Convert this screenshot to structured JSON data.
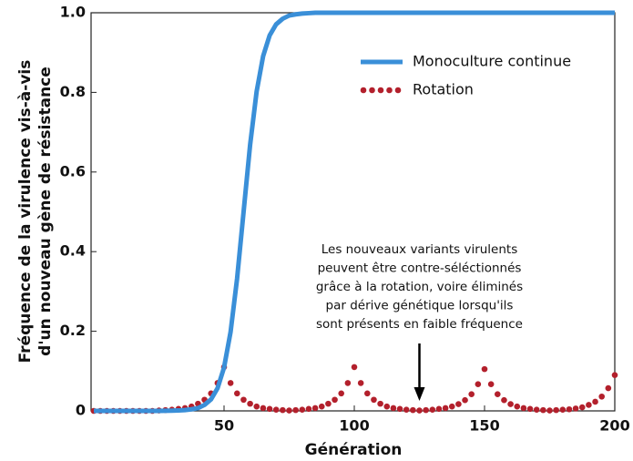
{
  "chart_data": {
    "type": "line",
    "xlabel": "Génération",
    "ylabel": [
      "Fréquence de la virulence vis-à-vis",
      "d'un nouveau gène de résistance"
    ],
    "annotation": [
      "Les nouveaux variants virulents",
      "peuvent être contre-séléctionnés",
      "grâce à la rotation, voire éliminés",
      "par dérive génétique lorsqu'ils",
      "sont présents en faible fréquence"
    ],
    "annotation_x": 125,
    "x": [
      0,
      2.5,
      5,
      7.5,
      10,
      12.5,
      15,
      17.5,
      20,
      22.5,
      25,
      27.5,
      30,
      32.5,
      35,
      37.5,
      40,
      42.5,
      45,
      47.5,
      50,
      52.5,
      55,
      57.5,
      60,
      62.5,
      65,
      67.5,
      70,
      72.5,
      75,
      77.5,
      80,
      82.5,
      85,
      87.5,
      90,
      92.5,
      95,
      97.5,
      100,
      102.5,
      105,
      107.5,
      110,
      112.5,
      115,
      117.5,
      120,
      122.5,
      125,
      127.5,
      130,
      132.5,
      135,
      137.5,
      140,
      142.5,
      145,
      147.5,
      150,
      152.5,
      155,
      157.5,
      160,
      162.5,
      165,
      167.5,
      170,
      172.5,
      175,
      177.5,
      180,
      182.5,
      185,
      187.5,
      190,
      192.5,
      195,
      197.5,
      200
    ],
    "series": [
      {
        "name": "Monoculture continue",
        "color": "#3a8fd8",
        "linestyle": "solid",
        "values": [
          0,
          0,
          0,
          0,
          0,
          0,
          0,
          0,
          0,
          0,
          0,
          0.0002,
          0.0005,
          0.001,
          0.002,
          0.004,
          0.007,
          0.015,
          0.029,
          0.057,
          0.109,
          0.198,
          0.332,
          0.5,
          0.668,
          0.802,
          0.891,
          0.943,
          0.971,
          0.985,
          0.993,
          0.996,
          0.998,
          0.999,
          1,
          1,
          1,
          1,
          1,
          1,
          1,
          1,
          1,
          1,
          1,
          1,
          1,
          1,
          1,
          1,
          1,
          1,
          1,
          1,
          1,
          1,
          1,
          1,
          1,
          1,
          1,
          1,
          1,
          1,
          1,
          1,
          1,
          1,
          1,
          1,
          1,
          1,
          1,
          1,
          1,
          1,
          1,
          1,
          1,
          1,
          1
        ]
      },
      {
        "name": "Rotation",
        "color": "#b3202c",
        "linestyle": "dotted",
        "values": [
          0,
          0,
          0,
          0,
          0,
          0,
          0,
          0,
          0,
          0,
          0.001,
          0.002,
          0.003,
          0.005,
          0.007,
          0.011,
          0.018,
          0.028,
          0.044,
          0.07,
          0.11,
          0.07,
          0.044,
          0.028,
          0.018,
          0.011,
          0.007,
          0.005,
          0.003,
          0.002,
          0.001,
          0.002,
          0.003,
          0.005,
          0.007,
          0.011,
          0.018,
          0.028,
          0.044,
          0.07,
          0.11,
          0.07,
          0.044,
          0.028,
          0.018,
          0.011,
          0.007,
          0.005,
          0.003,
          0.002,
          0.001,
          0.002,
          0.003,
          0.005,
          0.007,
          0.011,
          0.017,
          0.027,
          0.042,
          0.067,
          0.105,
          0.067,
          0.042,
          0.027,
          0.017,
          0.011,
          0.007,
          0.005,
          0.003,
          0.002,
          0.001,
          0.002,
          0.003,
          0.004,
          0.006,
          0.009,
          0.015,
          0.023,
          0.036,
          0.057,
          0.09
        ]
      }
    ],
    "xlim": [
      0,
      200
    ],
    "xticks": [
      50,
      100,
      150,
      200
    ],
    "ylim": [
      0,
      1
    ],
    "yticks": [
      0,
      {
        "value": 0.2,
        "label": "0.2"
      },
      {
        "value": 0.4,
        "label": "0.4"
      },
      {
        "value": 0.6,
        "label": "0.6"
      },
      {
        "value": 0.8,
        "label": "0.8"
      },
      {
        "value": 1,
        "label": "1.0"
      }
    ],
    "legend": "upper right"
  }
}
